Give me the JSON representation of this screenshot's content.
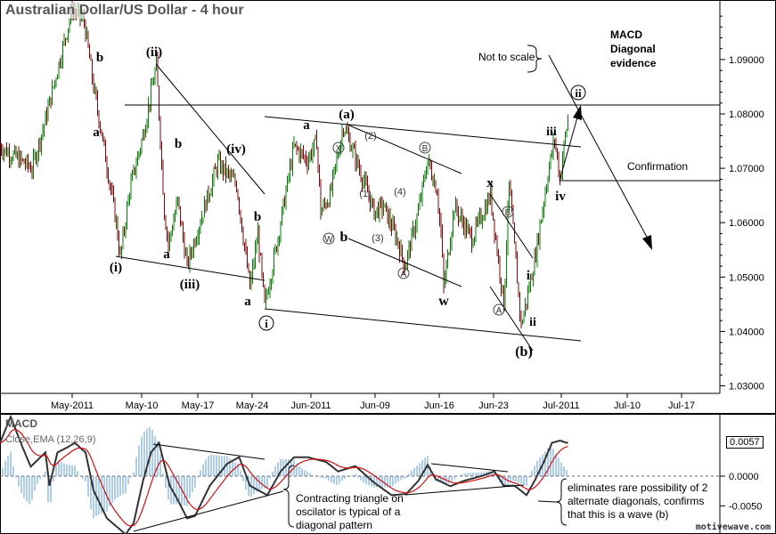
{
  "title": "Australian Dollar/US Dollar - 4 hour",
  "watermark": "motivewave.com",
  "colors": {
    "up": "#0a7a0a",
    "down": "#7a0a0a",
    "macd": "#333333",
    "signal": "#d01010",
    "histogram": "#5b9bd5"
  },
  "annotations": {
    "macd_note": [
      "MACD",
      "Diagonal",
      "evidence"
    ],
    "not_to_scale": "Not to scale",
    "confirmation": "Confirmation",
    "triangle_note": [
      "Contracting triangle on",
      "oscilator is typical of a",
      "diagonal pattern"
    ],
    "alt_note": [
      "eliminates rare possibility of 2",
      "alternate diagonals, confirms",
      "that this is a wave (b)"
    ]
  },
  "wave_labels": {
    "i_circ": "i",
    "ii_circ_top": "ii",
    "ii_circ": "ii",
    "iii_p": "(iii)",
    "iv_p": "(iv)",
    "i_p": "(i)",
    "ii_p": "(ii)",
    "a_p": "(a)",
    "b_p": "(b)",
    "b1": "b",
    "a1": "a",
    "b2": "b",
    "a2": "a",
    "b3": "b",
    "a3": "a",
    "a4": "a",
    "b4": "b",
    "w": "w",
    "x": "x",
    "i": "i",
    "ii": "ii",
    "iii": "iii",
    "iv": "iv",
    "W": "W",
    "X": "X",
    "A1": "A",
    "B1": "B",
    "A2": "A",
    "B2": "B",
    "n1": "(1)",
    "n2": "(2)",
    "n3": "(3)",
    "n4": "(4)"
  },
  "chart_data": [
    {
      "type": "ohlc",
      "title": "Australian Dollar/US Dollar - 4 hour",
      "y_ticks": [
        "1.03000",
        "1.04000",
        "1.05000",
        "1.06000",
        "1.07000",
        "1.08000",
        "1.09000"
      ],
      "x_ticks": [
        "May-2011",
        "May-10",
        "May-17",
        "May-24",
        "Jun-2011",
        "Jun-09",
        "Jun-16",
        "Jun-23",
        "Jul-2011",
        "Jul-10",
        "Jul-17"
      ],
      "ylim": [
        1.0275,
        1.101
      ],
      "price_path": [
        [
          "2011-04-22T00:00",
          1.074
        ],
        [
          "2011-04-26T00:00",
          1.07
        ],
        [
          "2011-04-27T12:00",
          1.078
        ],
        [
          "2011-05-01T00:00",
          1.0993
        ],
        [
          "2011-05-02T12:00",
          1.097
        ],
        [
          "2011-05-03T16:00",
          1.085
        ],
        [
          "2011-05-04T20:00",
          1.075
        ],
        [
          "2011-05-06T12:00",
          1.06
        ],
        [
          "2011-05-07T00:00",
          1.0535
        ],
        [
          "2011-05-08T04:00",
          1.066
        ],
        [
          "2011-05-09T20:00",
          1.076
        ],
        [
          "2011-05-11T12:00",
          1.089
        ],
        [
          "2011-05-12T12:00",
          1.062
        ],
        [
          "2011-05-13T00:00",
          1.056
        ],
        [
          "2011-05-14T04:00",
          1.064
        ],
        [
          "2011-05-15T08:00",
          1.052
        ],
        [
          "2011-05-16T12:00",
          1.058
        ],
        [
          "2011-05-19T04:00",
          1.071
        ],
        [
          "2011-05-21T12:00",
          1.067
        ],
        [
          "2011-05-23T04:00",
          1.048
        ],
        [
          "2011-05-24T04:00",
          1.058
        ],
        [
          "2011-05-25T00:00",
          1.0445
        ],
        [
          "2011-05-26T12:00",
          1.056
        ],
        [
          "2011-05-28T16:00",
          1.074
        ],
        [
          "2011-05-30T08:00",
          1.0715
        ],
        [
          "2011-05-31T12:00",
          1.075
        ],
        [
          "2011-06-01T00:00",
          1.062
        ],
        [
          "2011-06-02T04:00",
          1.065
        ],
        [
          "2011-06-03T20:00",
          1.078
        ],
        [
          "2011-06-04T20:00",
          1.074
        ],
        [
          "2011-06-07T16:00",
          1.062
        ],
        [
          "2011-06-08T20:00",
          1.063
        ],
        [
          "2011-06-10T12:00",
          1.057
        ],
        [
          "2011-06-11T12:00",
          1.052
        ],
        [
          "2011-06-13T04:00",
          1.062
        ],
        [
          "2011-06-14T08:00",
          1.0715
        ],
        [
          "2011-06-15T12:00",
          1.066
        ],
        [
          "2011-06-16T00:00",
          1.058
        ],
        [
          "2011-06-16T08:00",
          1.048
        ],
        [
          "2011-06-17T16:00",
          1.063
        ],
        [
          "2011-06-19T20:00",
          1.057
        ],
        [
          "2011-06-22T04:00",
          1.065
        ],
        [
          "2011-06-23T04:00",
          1.053
        ],
        [
          "2011-06-23T20:00",
          1.045
        ],
        [
          "2011-06-24T12:00",
          1.067
        ],
        [
          "2011-06-26T00:00",
          1.041
        ],
        [
          "2011-06-26T20:00",
          1.047
        ],
        [
          "2011-06-27T16:00",
          1.053
        ],
        [
          "2011-06-29T08:00",
          1.069
        ],
        [
          "2011-06-30T04:00",
          1.0755
        ],
        [
          "2011-06-30T20:00",
          1.068
        ],
        [
          "2011-07-01T08:00",
          1.074
        ],
        [
          "2011-07-01T20:00",
          1.079
        ]
      ],
      "levels": {
        "horizontal_high": 1.0815,
        "confirmation": 1.0675
      }
    },
    {
      "type": "macd",
      "title": "MACD",
      "subtitle": "Close,EMA (12,26,9)",
      "y_ticks": [
        "0.0000",
        "-0.0050"
      ],
      "last_value": "0.0057",
      "macd": [
        [
          "2011-04-22T00:00",
          0.0056
        ],
        [
          "2011-04-23T08:00",
          0.01
        ],
        [
          "2011-04-24T20:00",
          0.0048
        ],
        [
          "2011-04-25T20:00",
          0.0016
        ],
        [
          "2011-04-27T16:00",
          0.004
        ],
        [
          "2011-04-28T04:00",
          -0.0016
        ],
        [
          "2011-04-29T04:00",
          0.004
        ],
        [
          "2011-04-30T08:00",
          0.0048
        ],
        [
          "2011-05-01T08:00",
          0.0056
        ],
        [
          "2011-05-02T16:00",
          0.004
        ],
        [
          "2011-05-03T16:00",
          -0.0024
        ],
        [
          "2011-05-05T08:00",
          -0.0071
        ],
        [
          "2011-05-07T16:00",
          -0.0098
        ],
        [
          "2011-05-08T16:00",
          -0.0079
        ],
        [
          "2011-05-09T20:00",
          -0.0008
        ],
        [
          "2011-05-10T20:00",
          0.004
        ],
        [
          "2011-05-11T20:00",
          0.0056
        ],
        [
          "2011-05-13T04:00",
          -0.0016
        ],
        [
          "2011-05-14T04:00",
          -0.004
        ],
        [
          "2011-05-15T08:00",
          -0.0071
        ],
        [
          "2011-05-16T08:00",
          -0.0067
        ],
        [
          "2011-05-18T04:00",
          -0.0016
        ],
        [
          "2011-05-20T08:00",
          0.0021
        ],
        [
          "2011-05-21T20:00",
          0.0032
        ],
        [
          "2011-05-23T04:00",
          -0.0016
        ],
        [
          "2011-05-25T08:00",
          -0.0032
        ],
        [
          "2011-05-27T00:00",
          0.0008
        ],
        [
          "2011-05-28T16:00",
          0.0032
        ],
        [
          "2011-05-30T08:00",
          0.0032
        ],
        [
          "2011-06-01T16:00",
          0.0024
        ],
        [
          "2011-06-03T04:00",
          0.0008
        ],
        [
          "2011-06-05T08:00",
          0.0017
        ],
        [
          "2011-06-07T16:00",
          -0.0011
        ],
        [
          "2011-06-09T20:00",
          -0.0032
        ],
        [
          "2011-06-11T16:00",
          -0.003
        ],
        [
          "2011-06-13T04:00",
          -0.0008
        ],
        [
          "2011-06-14T08:00",
          0.0019
        ],
        [
          "2011-06-15T08:00",
          -0.0005
        ],
        [
          "2011-06-17T04:00",
          -0.0017
        ],
        [
          "2011-06-18T20:00",
          -0.0008
        ],
        [
          "2011-06-21T00:00",
          0.0
        ],
        [
          "2011-06-22T16:00",
          0.0008
        ],
        [
          "2011-06-23T20:00",
          -0.0016
        ],
        [
          "2011-06-25T04:00",
          -0.0016
        ],
        [
          "2011-06-26T16:00",
          -0.0032
        ],
        [
          "2011-06-27T16:00",
          -0.0008
        ],
        [
          "2011-06-28T20:00",
          0.0024
        ],
        [
          "2011-06-29T20:00",
          0.0056
        ],
        [
          "2011-06-30T20:00",
          0.006
        ],
        [
          "2011-07-01T16:00",
          0.0056
        ],
        [
          "2011-07-01T20:00",
          0.0057
        ]
      ]
    }
  ]
}
